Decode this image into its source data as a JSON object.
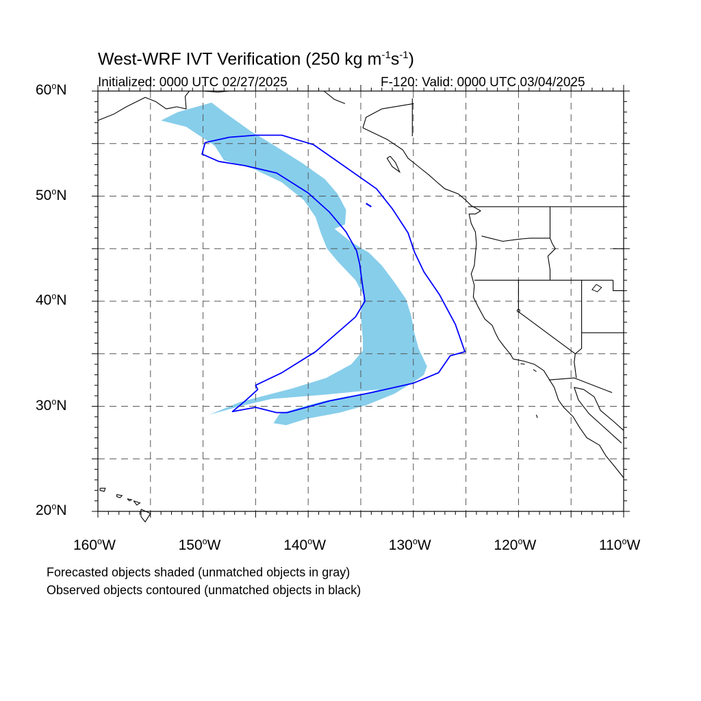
{
  "title": {
    "main": "West-WRF IVT Verification (250 kg m",
    "exp1": "-1",
    "mid": "s",
    "exp2": "-1",
    "end": ")"
  },
  "subtitle_left": "Initialized: 0000 UTC 02/27/2025",
  "subtitle_right": "F-120: Valid: 0000 UTC 03/04/2025",
  "map": {
    "lon_range": [
      -160,
      -110
    ],
    "lat_range": [
      20,
      60
    ],
    "lat_labels": [
      {
        "lat": 60,
        "num": "60",
        "unit": "o",
        "hem": "N"
      },
      {
        "lat": 50,
        "num": "50",
        "unit": "o",
        "hem": "N"
      },
      {
        "lat": 40,
        "num": "40",
        "unit": "o",
        "hem": "N"
      },
      {
        "lat": 30,
        "num": "30",
        "unit": "o",
        "hem": "N"
      },
      {
        "lat": 20,
        "num": "20",
        "unit": "o",
        "hem": "N"
      }
    ],
    "lon_labels": [
      {
        "lon": -160,
        "num": "160",
        "unit": "o",
        "hem": "W"
      },
      {
        "lon": -150,
        "num": "150",
        "unit": "o",
        "hem": "W"
      },
      {
        "lon": -140,
        "num": "140",
        "unit": "o",
        "hem": "W"
      },
      {
        "lon": -130,
        "num": "130",
        "unit": "o",
        "hem": "W"
      },
      {
        "lon": -120,
        "num": "120",
        "unit": "o",
        "hem": "W"
      },
      {
        "lon": -110,
        "num": "110",
        "unit": "o",
        "hem": "W"
      }
    ],
    "grid_lats": [
      25,
      30,
      35,
      40,
      45,
      50,
      55
    ],
    "grid_lons": [
      -155,
      -150,
      -145,
      -140,
      -135,
      -130,
      -125,
      -120,
      -115
    ],
    "forecast_fill_color": "#87CEEB",
    "observed_contour_color": "#0000FF",
    "forecast_object": [
      [
        -149.2,
        58.9
      ],
      [
        -148.0,
        58.0
      ],
      [
        -145.5,
        56.2
      ],
      [
        -143.5,
        55.0
      ],
      [
        -140.5,
        53.1
      ],
      [
        -138.4,
        51.6
      ],
      [
        -137.2,
        50.2
      ],
      [
        -136.4,
        48.7
      ],
      [
        -136.5,
        47.3
      ],
      [
        -137.5,
        46.9
      ],
      [
        -136.0,
        45.7
      ],
      [
        -134.2,
        44.6
      ],
      [
        -133.0,
        43.4
      ],
      [
        -131.8,
        41.8
      ],
      [
        -130.7,
        40.2
      ],
      [
        -130.2,
        38.6
      ],
      [
        -129.9,
        37.0
      ],
      [
        -129.5,
        35.5
      ],
      [
        -128.7,
        33.8
      ],
      [
        -129.0,
        33.0
      ],
      [
        -130.0,
        32.3
      ],
      [
        -131.8,
        31.2
      ],
      [
        -134.5,
        30.1
      ],
      [
        -137.0,
        29.4
      ],
      [
        -140.2,
        28.8
      ],
      [
        -142.1,
        28.2
      ],
      [
        -143.3,
        28.4
      ],
      [
        -142.7,
        29.3
      ],
      [
        -140.4,
        30.0
      ],
      [
        -138.5,
        30.5
      ],
      [
        -136.5,
        30.9
      ],
      [
        -134.3,
        31.3
      ],
      [
        -133.2,
        31.6
      ],
      [
        -138.5,
        31.1
      ],
      [
        -143.5,
        30.7
      ],
      [
        -146.5,
        30.0
      ],
      [
        -149.4,
        29.2
      ],
      [
        -146.5,
        30.4
      ],
      [
        -141.5,
        31.7
      ],
      [
        -138.3,
        32.7
      ],
      [
        -135.9,
        34.0
      ],
      [
        -134.8,
        35.3
      ],
      [
        -134.8,
        36.3
      ],
      [
        -134.9,
        37.5
      ],
      [
        -135.0,
        39.0
      ],
      [
        -134.7,
        40.5
      ],
      [
        -135.5,
        42.0
      ],
      [
        -137.2,
        43.8
      ],
      [
        -138.2,
        45.0
      ],
      [
        -138.8,
        46.5
      ],
      [
        -139.3,
        48.0
      ],
      [
        -140.4,
        49.6
      ],
      [
        -142.5,
        51.3
      ],
      [
        -145.2,
        52.6
      ],
      [
        -148.0,
        53.4
      ],
      [
        -148.9,
        54.8
      ],
      [
        -151.6,
        56.6
      ],
      [
        -154.0,
        57.2
      ],
      [
        -152.4,
        58.0
      ]
    ],
    "observed_contour": [
      [
        -149.8,
        55.1
      ],
      [
        -147.5,
        55.6
      ],
      [
        -145.0,
        55.8
      ],
      [
        -142.5,
        55.8
      ],
      [
        -139.5,
        54.9
      ],
      [
        -136.5,
        52.8
      ],
      [
        -133.5,
        50.7
      ],
      [
        -132.0,
        48.8
      ],
      [
        -130.5,
        46.5
      ],
      [
        -129.9,
        44.7
      ],
      [
        -129.0,
        42.8
      ],
      [
        -127.5,
        40.6
      ],
      [
        -126.0,
        37.8
      ],
      [
        -125.1,
        35.2
      ],
      [
        -126.5,
        34.8
      ],
      [
        -127.6,
        33.2
      ],
      [
        -130.0,
        32.2
      ],
      [
        -134.0,
        31.3
      ],
      [
        -138.0,
        30.5
      ],
      [
        -142.0,
        29.4
      ],
      [
        -143.0,
        29.4
      ],
      [
        -145.0,
        29.9
      ],
      [
        -147.2,
        29.5
      ],
      [
        -146.0,
        30.5
      ],
      [
        -144.8,
        31.6
      ],
      [
        -145.0,
        32.0
      ],
      [
        -142.5,
        33.2
      ],
      [
        -139.3,
        35.2
      ],
      [
        -137.0,
        37.2
      ],
      [
        -135.5,
        38.5
      ],
      [
        -134.6,
        40.0
      ],
      [
        -134.9,
        42.0
      ],
      [
        -135.1,
        43.5
      ],
      [
        -135.4,
        44.8
      ],
      [
        -136.4,
        46.6
      ],
      [
        -138.0,
        48.5
      ],
      [
        -140.0,
        50.3
      ],
      [
        -143.0,
        52.2
      ],
      [
        -146.0,
        52.9
      ],
      [
        -148.5,
        53.3
      ],
      [
        -150.1,
        54.0
      ]
    ],
    "small_observed_piece": [
      [
        -134.5,
        49.3
      ],
      [
        -134.0,
        49.0
      ]
    ]
  },
  "footnotes": [
    "Forecasted objects shaded (unmatched objects in gray)",
    "Observed objects contoured (unmatched objects in black)"
  ]
}
